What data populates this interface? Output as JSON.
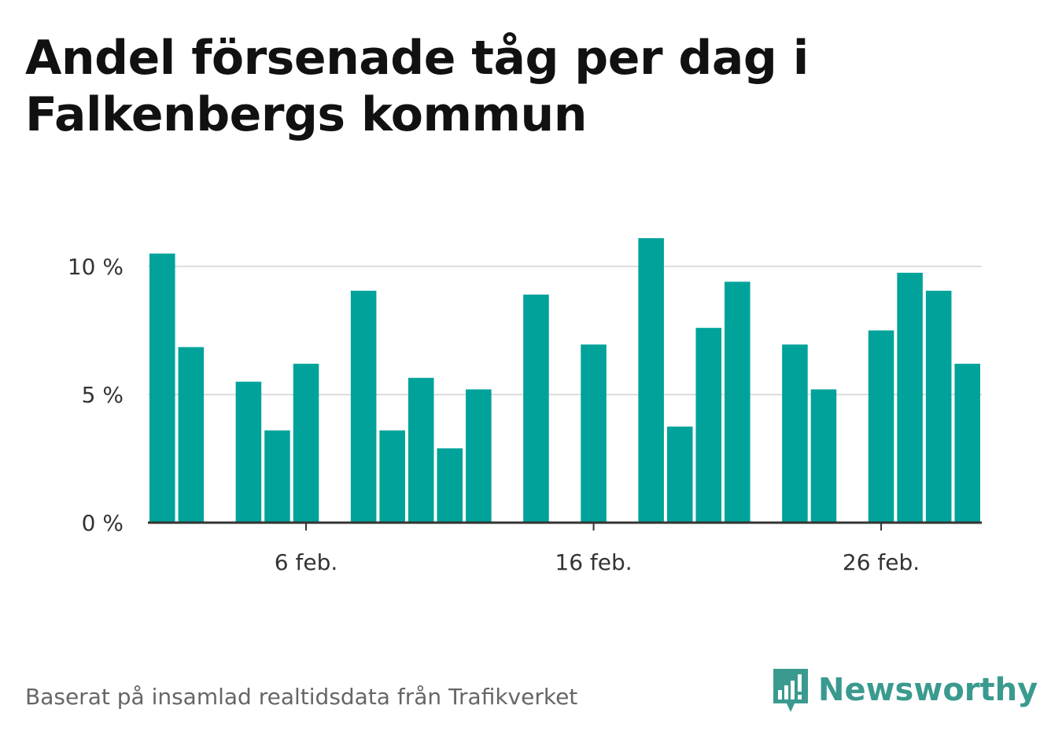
{
  "title": "Andel försenade tåg per dag i Falkenbergs kommun",
  "footer": {
    "source": "Baserat på insamlad realtidsdata från Trafikverket"
  },
  "brand": {
    "name": "Newsworthy",
    "logo_icon": "bar-chart-speech-bubble-icon",
    "color": "#3a9a8f"
  },
  "chart_data": {
    "type": "bar",
    "x_unit": "day of February",
    "x": [
      1,
      2,
      4,
      5,
      6,
      8,
      9,
      10,
      11,
      12,
      14,
      16,
      18,
      19,
      20,
      21,
      23,
      24,
      26,
      27,
      28,
      29
    ],
    "values": [
      10.5,
      6.85,
      5.5,
      3.6,
      6.2,
      9.05,
      3.6,
      5.65,
      2.9,
      5.2,
      8.9,
      6.95,
      11.1,
      3.75,
      7.6,
      9.4,
      6.95,
      5.2,
      7.5,
      9.75,
      9.05,
      6.2
    ],
    "xticks": [
      {
        "day": 6,
        "label": "6 feb."
      },
      {
        "day": 16,
        "label": "16 feb."
      },
      {
        "day": 26,
        "label": "26 feb."
      }
    ],
    "yticks": [
      {
        "value": 0,
        "label": "0 %"
      },
      {
        "value": 5,
        "label": "5 %"
      },
      {
        "value": 10,
        "label": "10 %"
      }
    ],
    "ylim": [
      0,
      11.5
    ],
    "xlim": [
      0.5,
      29.5
    ],
    "grid": true,
    "bar_color": "#00a29a",
    "grid_color": "#dddddd",
    "axis_color": "#333333"
  }
}
